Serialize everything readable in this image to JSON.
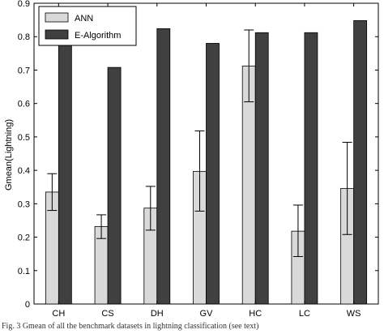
{
  "chart_data": {
    "type": "bar",
    "title": "",
    "xlabel": "",
    "ylabel": "Gmean(Lightning)",
    "categories": [
      "CH",
      "CS",
      "DH",
      "GV",
      "HC",
      "LC",
      "WS"
    ],
    "series": [
      {
        "name": "ANN",
        "color": "#d9d9d9",
        "values": [
          0.335,
          0.232,
          0.287,
          0.397,
          0.712,
          0.218,
          0.346
        ],
        "error_low": [
          0.28,
          0.196,
          0.221,
          0.278,
          0.605,
          0.142,
          0.208
        ],
        "error_high": [
          0.39,
          0.267,
          0.352,
          0.518,
          0.82,
          0.296,
          0.484
        ]
      },
      {
        "name": "E-Algorithm",
        "color": "#404040",
        "values": [
          0.775,
          0.708,
          0.824,
          0.78,
          0.812,
          0.812,
          0.848
        ]
      }
    ],
    "ylim": [
      0,
      0.9
    ],
    "yticks": [
      "0",
      "0.1",
      "0.2",
      "0.3",
      "0.4",
      "0.5",
      "0.6",
      "0.7",
      "0.8",
      "0.9"
    ],
    "grid": false,
    "legend_position": "top-left",
    "error_bars": true
  },
  "caption": "Fig. 3    Gmean of all the benchmark datasets in lightning classification (see text)"
}
